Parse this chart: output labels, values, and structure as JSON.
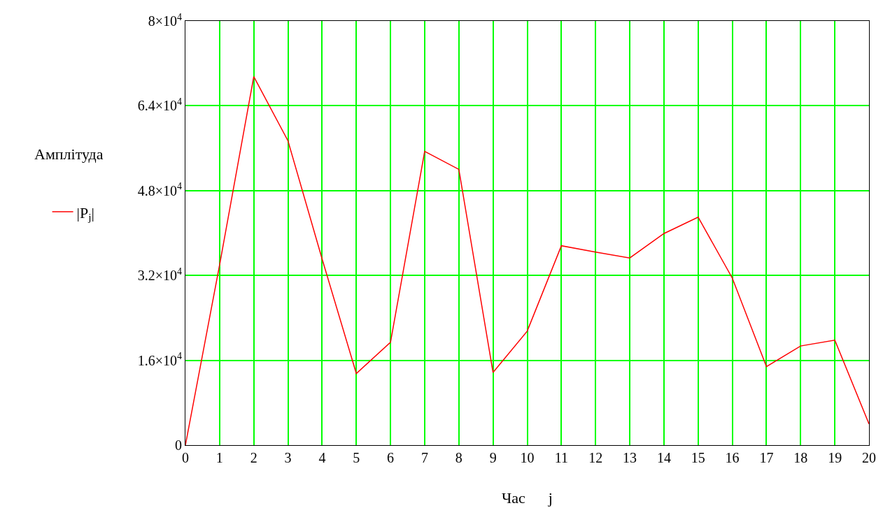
{
  "chart_data": {
    "type": "line",
    "xlabel": "Час      j",
    "ylabel": "Амплітуда",
    "x": [
      0,
      1,
      2,
      3,
      4,
      5,
      6,
      7,
      8,
      9,
      10,
      11,
      12,
      13,
      14,
      15,
      16,
      17,
      18,
      19,
      20
    ],
    "series": [
      {
        "name": "|P$_{j}$|",
        "color": "#ff0000",
        "values": [
          0,
          34000,
          69500,
          57400,
          35100,
          13500,
          19400,
          55400,
          52000,
          13700,
          21500,
          37600,
          36400,
          35300,
          39900,
          43000,
          31500,
          14800,
          18700,
          19800,
          4000
        ]
      }
    ],
    "xlim": [
      0,
      20
    ],
    "xticks": [
      0,
      1,
      2,
      3,
      4,
      5,
      6,
      7,
      8,
      9,
      10,
      11,
      12,
      13,
      14,
      15,
      16,
      17,
      18,
      19,
      20
    ],
    "ylim": [
      0,
      80000
    ],
    "yticks": [
      0,
      {
        "value": 16000,
        "label": "1.6×10$^{4}$"
      },
      {
        "value": 32000,
        "label": "3.2×10$^{4}$"
      },
      {
        "value": 48000,
        "label": "4.8×10$^{4}$"
      },
      {
        "value": 64000,
        "label": "6.4×10$^{4}$"
      },
      {
        "value": 80000,
        "label": "8×10$^{4}$"
      }
    ],
    "grid": true,
    "legend": "left",
    "marker": "none",
    "line_style": "solid"
  }
}
